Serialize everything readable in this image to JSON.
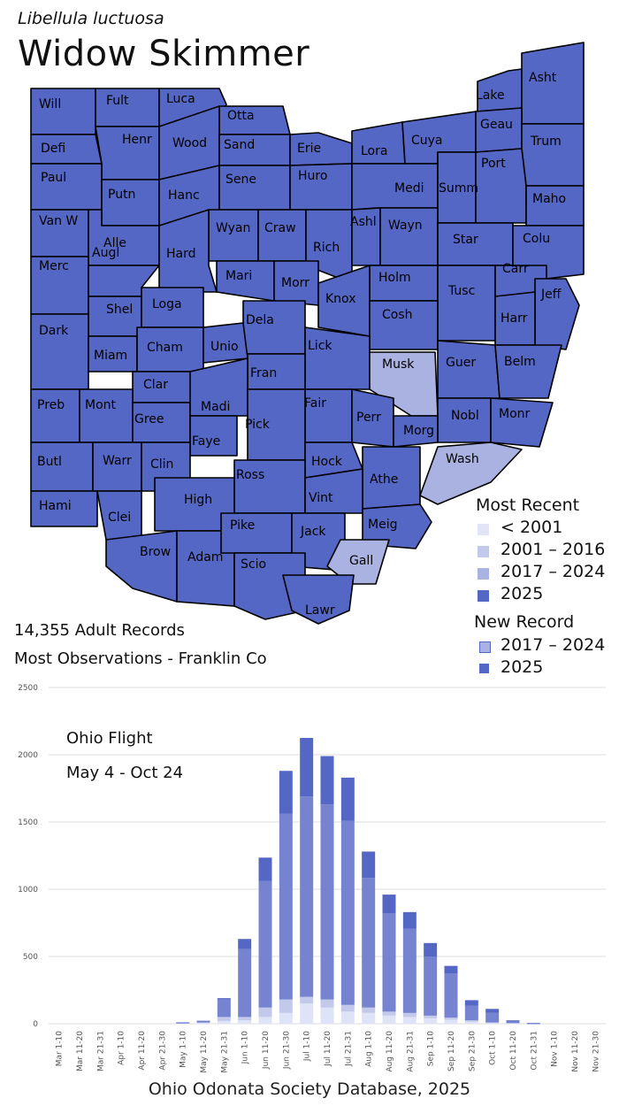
{
  "species": {
    "scientific": "Libellula luctuosa",
    "common": "Widow Skimmer"
  },
  "colors": {
    "pre2001": "#e2e5f6",
    "r2001_2016": "#c3c9ea",
    "r2017_2024": "#a9b2e0",
    "r2025": "#5567c5",
    "early_segment": "#c3c9ea",
    "mid_segment": "#7583d0",
    "recent_segment": "#5567c5"
  },
  "counties": [
    "Will",
    "Fult",
    "Luca",
    "Otta",
    "Lake",
    "Asht",
    "Defi",
    "Henr",
    "Wood",
    "Sand",
    "Erie",
    "Lora",
    "Cuya",
    "Geau",
    "Trum",
    "Paul",
    "Putn",
    "Hanc",
    "Sene",
    "Huro",
    "Medi",
    "Summ",
    "Port",
    "Maho",
    "Van W",
    "Alle",
    "Wyan",
    "Craw",
    "Rich",
    "Ashl",
    "Wayn",
    "Star",
    "Colu",
    "Merc",
    "Augl",
    "Hard",
    "Mari",
    "Morr",
    "Holm",
    "Tusc",
    "Carr",
    "Jeff",
    "Shel",
    "Loga",
    "Knox",
    "Cosh",
    "Harr",
    "Dark",
    "Dela",
    "Lick",
    "Musk",
    "Guer",
    "Belm",
    "Miam",
    "Cham",
    "Unio",
    "Fran",
    "Clar",
    "Fair",
    "Perr",
    "Nobl",
    "Monr",
    "Preb",
    "Mont",
    "Gree",
    "Madi",
    "Pick",
    "Morg",
    "Faye",
    "Wash",
    "Butl",
    "Warr",
    "Clin",
    "Hock",
    "Athe",
    "Ross",
    "Hami",
    "Clei",
    "High",
    "Vint",
    "Meig",
    "Brow",
    "Adam",
    "Pike",
    "Jack",
    "Scio",
    "Gall",
    "Lawr"
  ],
  "legend": {
    "most_recent_title": "Most Recent",
    "most_recent_items": [
      "< 2001",
      "2001 – 2016",
      "2017 – 2024",
      "2025"
    ],
    "new_record_title": "New Record",
    "new_record_items": [
      "2017 – 2024",
      "2025"
    ]
  },
  "stats": {
    "records": "14,355  Adult Records",
    "most_observations": "Most Observations - Franklin Co"
  },
  "chart_data": {
    "type": "bar",
    "stacked": true,
    "title": "Ohio Flight",
    "subtitle": "May 4 - Oct 24",
    "ylim": [
      0,
      2500
    ],
    "yticks": [
      0,
      500,
      1000,
      1500,
      2000,
      2500
    ],
    "grid": true,
    "categories": [
      "Mar 1-10",
      "Mar 11-20",
      "Mar 21-31",
      "Apr 1-10",
      "Apr 11-20",
      "Apr 21-30",
      "May 1-10",
      "May 11-20",
      "May 21-31",
      "Jun 1-10",
      "Jun 11-20",
      "Jun 21-30",
      "Jul 1-10",
      "Jul 11-20",
      "Jul 21-31",
      "Aug 1-10",
      "Aug 11-20",
      "Aug 21-31",
      "Sep 1-10",
      "Sep 11-20",
      "Sep 21-30",
      "Oct 1-10",
      "Oct 11-20",
      "Oct 21-31",
      "Nov 1-10",
      "Nov 11-20",
      "Nov 21-30"
    ],
    "series": [
      {
        "values": [
          0,
          0,
          0,
          0,
          0,
          0,
          2,
          5,
          20,
          25,
          50,
          80,
          150,
          120,
          90,
          80,
          60,
          50,
          40,
          30,
          15,
          8,
          2,
          0,
          0,
          0,
          0
        ]
      },
      {
        "values": [
          0,
          0,
          0,
          0,
          0,
          0,
          3,
          5,
          30,
          25,
          70,
          100,
          50,
          60,
          50,
          40,
          30,
          30,
          20,
          15,
          10,
          2,
          3,
          0,
          0,
          0,
          0
        ]
      },
      {
        "values": [
          0,
          0,
          0,
          0,
          0,
          0,
          3,
          5,
          130,
          505,
          940,
          1380,
          1490,
          1450,
          1370,
          965,
          730,
          625,
          440,
          330,
          110,
          70,
          10,
          2,
          0,
          0,
          0
        ]
      },
      {
        "values": [
          0,
          0,
          0,
          0,
          0,
          0,
          2,
          7,
          10,
          75,
          175,
          320,
          435,
          360,
          320,
          195,
          140,
          125,
          100,
          55,
          40,
          30,
          10,
          3,
          0,
          0,
          0
        ]
      }
    ]
  },
  "footer": "Ohio Odonata Society Database, 2025"
}
